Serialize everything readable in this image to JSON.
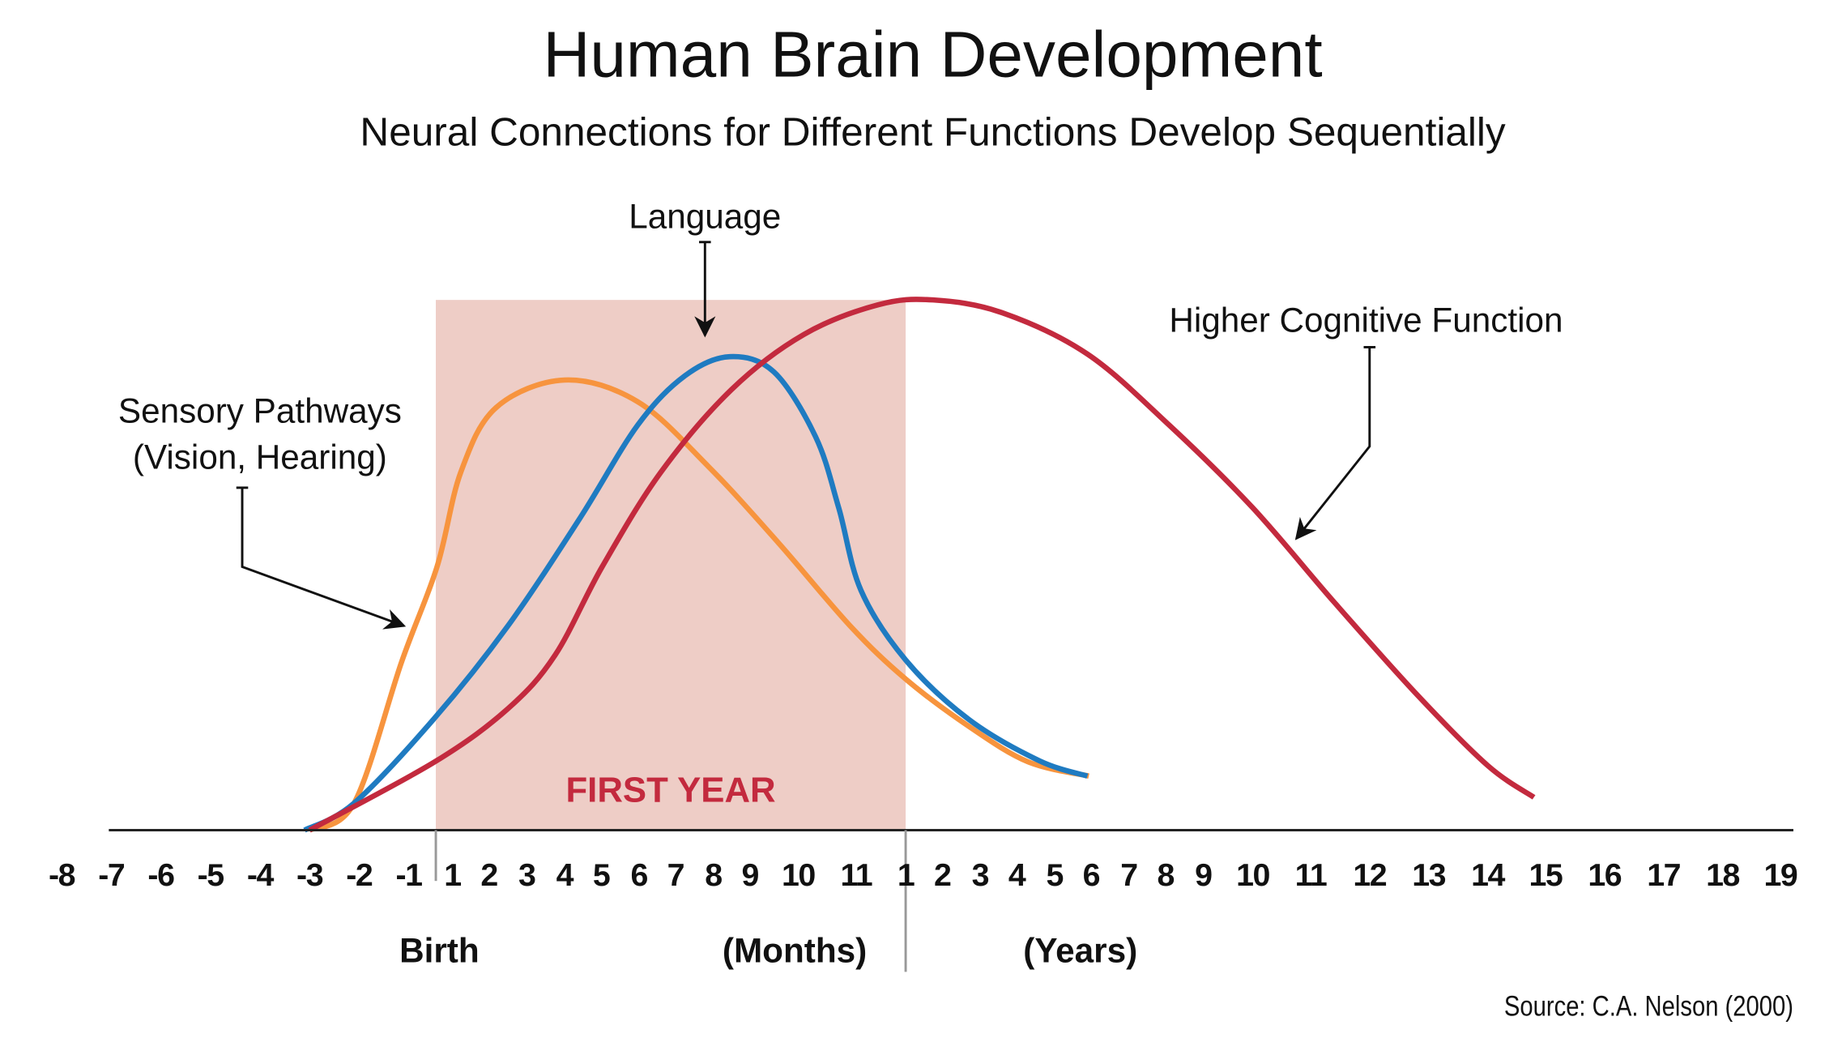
{
  "chart_data": {
    "type": "line",
    "title": "Human Brain Development",
    "subtitle": "Neural Connections for Different Functions Develop Sequentially",
    "x_tick_labels": [
      "-8",
      "-7",
      "-6",
      "-5",
      "-4",
      "-3",
      "-2",
      "-1",
      "1",
      "2",
      "3",
      "4",
      "5",
      "6",
      "7",
      "8",
      "9",
      "10",
      "11",
      "1",
      "2",
      "3",
      "4",
      "5",
      "6",
      "7",
      "8",
      "9",
      "10",
      "11",
      "12",
      "13",
      "14",
      "15",
      "16",
      "17",
      "18",
      "19"
    ],
    "x_axis_labels": {
      "birth": "Birth",
      "months": "(Months)",
      "years": "(Years)"
    },
    "highlight": {
      "label": "FIRST YEAR",
      "from_tick": "1 (month)",
      "to_tick": "1 (year)",
      "color": "#eecdc6",
      "label_color": "#c32a3e"
    },
    "grid": false,
    "source": "Source: C.A. Nelson (2000)",
    "series": [
      {
        "name": "Sensory Pathways (Vision, Hearing)",
        "label_lines": [
          "Sensory Pathways",
          "(Vision, Hearing)"
        ],
        "color": "#f7943e",
        "points": [
          [
            5,
            0
          ],
          [
            5.9,
            5.1
          ],
          [
            6.86,
            31.8
          ],
          [
            7.65,
            49.7
          ],
          [
            8.23,
            67.5
          ],
          [
            9.19,
            79.7
          ],
          [
            11,
            84.9
          ],
          [
            12.97,
            80.8
          ],
          [
            14.87,
            68.6
          ],
          [
            16.6,
            54.1
          ],
          [
            17.9,
            38.5
          ],
          [
            19,
            28.5
          ],
          [
            20.7,
            19.6
          ],
          [
            22.3,
            12.9
          ],
          [
            23.94,
            10.2
          ]
        ]
      },
      {
        "name": "Language",
        "color": "#1f7bc1",
        "points": [
          [
            4.9,
            0
          ],
          [
            5.9,
            5.1
          ],
          [
            7.6,
            21.2
          ],
          [
            9.5,
            38.5
          ],
          [
            11.4,
            58.6
          ],
          [
            12.97,
            76.4
          ],
          [
            14.25,
            85.7
          ],
          [
            15.45,
            89.3
          ],
          [
            16.5,
            86.4
          ],
          [
            17.3,
            74.2
          ],
          [
            17.7,
            60.8
          ],
          [
            18.1,
            45.2
          ],
          [
            19,
            32.1
          ],
          [
            20.7,
            20.9
          ],
          [
            22.6,
            13.1
          ],
          [
            23.9,
            10.2
          ]
        ]
      },
      {
        "name": "Higher Cognitive Function",
        "color": "#c32a3e",
        "points": [
          [
            5,
            0
          ],
          [
            7.6,
            12.9
          ],
          [
            9.5,
            22.9
          ],
          [
            10.75,
            33
          ],
          [
            12.03,
            49.7
          ],
          [
            13.6,
            67.5
          ],
          [
            15.5,
            83.1
          ],
          [
            17.1,
            93.5
          ],
          [
            18.45,
            99.1
          ],
          [
            19.75,
            100
          ],
          [
            21.6,
            97.6
          ],
          [
            23.9,
            89.8
          ],
          [
            26.1,
            76.4
          ],
          [
            28,
            60.8
          ],
          [
            29.4,
            43
          ],
          [
            30.8,
            25.6
          ],
          [
            32,
            12.2
          ],
          [
            32.8,
            6.2
          ]
        ]
      }
    ]
  }
}
